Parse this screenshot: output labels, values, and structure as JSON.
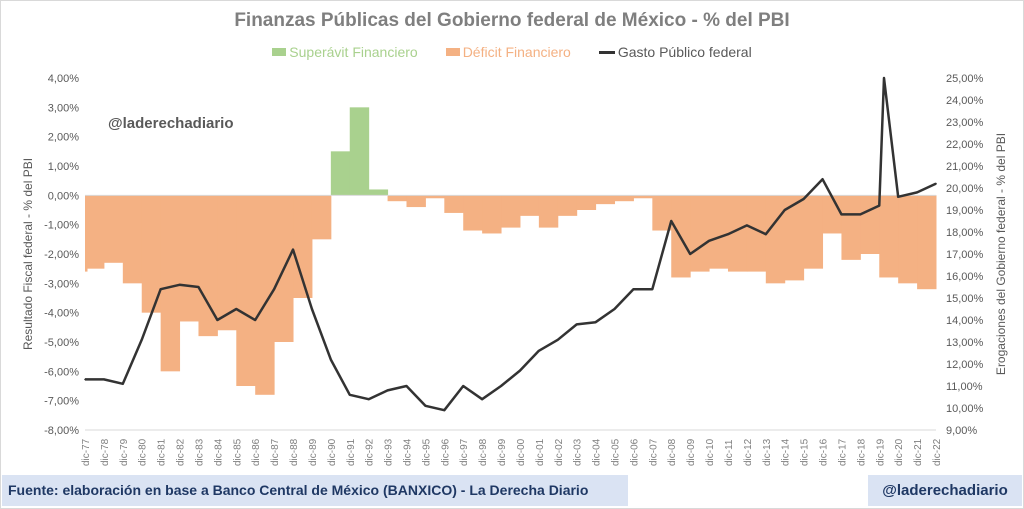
{
  "chart_data": {
    "type": "bar+line",
    "title": "Finanzas Públicas del Gobierno federal de México - % del PBI",
    "legend_position": "top",
    "y_left": {
      "label": "Resultado Fiscal federal - % del PBI",
      "range": [
        -8,
        4
      ],
      "ticks": [
        "4,00%",
        "3,00%",
        "2,00%",
        "1,00%",
        "0,00%",
        "-1,00%",
        "-2,00%",
        "-3,00%",
        "-4,00%",
        "-5,00%",
        "-6,00%",
        "-7,00%",
        "-8,00%"
      ]
    },
    "y_right": {
      "label": "Erogaciones del Gobierno federal - % del PBI",
      "range": [
        9,
        25
      ],
      "ticks": [
        "25,00%",
        "24,00%",
        "23,00%",
        "22,00%",
        "21,00%",
        "20,00%",
        "19,00%",
        "18,00%",
        "17,00%",
        "16,00%",
        "15,00%",
        "14,00%",
        "13,00%",
        "12,00%",
        "11,00%",
        "10,00%",
        "9,00%"
      ]
    },
    "x_ticks": [
      "dic-77",
      "dic-78",
      "dic-79",
      "dic-80",
      "dic-81",
      "dic-82",
      "dic-83",
      "dic-84",
      "dic-85",
      "dic-86",
      "dic-87",
      "dic-88",
      "dic-89",
      "dic-90",
      "dic-91",
      "dic-92",
      "dic-93",
      "dic-94",
      "dic-95",
      "dic-96",
      "dic-97",
      "dic-98",
      "dic-99",
      "dic-00",
      "dic-01",
      "dic-02",
      "dic-03",
      "dic-04",
      "dic-05",
      "dic-06",
      "dic-07",
      "dic-08",
      "dic-09",
      "dic-10",
      "dic-11",
      "dic-12",
      "dic-13",
      "dic-14",
      "dic-15",
      "dic-16",
      "dic-17",
      "dic-18",
      "dic-19",
      "dic-20",
      "dic-21",
      "dic-22"
    ],
    "series": [
      {
        "name": "Superávit Financiero",
        "kind": "bar-positive",
        "color": "#a9d18e"
      },
      {
        "name": "Déficit Financiero",
        "kind": "bar-negative",
        "color": "#f4b183"
      },
      {
        "name": "Gasto Público federal",
        "kind": "line",
        "axis": "right",
        "color": "#333333"
      }
    ],
    "balance": [
      -2.6,
      -2.5,
      -2.3,
      -3.0,
      -4.0,
      -6.0,
      -4.3,
      -4.8,
      -4.6,
      -6.5,
      -6.8,
      -5.0,
      -3.5,
      -1.5,
      1.5,
      3.0,
      0.2,
      -0.2,
      -0.4,
      -0.1,
      -0.6,
      -1.2,
      -1.3,
      -1.1,
      -0.7,
      -1.1,
      -0.7,
      -0.5,
      -0.3,
      -0.2,
      -0.1,
      -1.2,
      -2.8,
      -2.6,
      -2.5,
      -2.6,
      -2.6,
      -3.0,
      -2.9,
      -2.5,
      -1.3,
      -2.2,
      -2.0,
      -2.8,
      -3.0,
      -3.2
    ],
    "spending": [
      11.3,
      11.3,
      11.1,
      13.1,
      15.4,
      15.6,
      15.5,
      14.0,
      14.5,
      14.0,
      15.4,
      17.2,
      14.5,
      12.2,
      10.6,
      10.4,
      10.8,
      11.0,
      10.1,
      9.9,
      11.0,
      10.4,
      11.0,
      11.7,
      12.6,
      13.1,
      13.8,
      13.9,
      14.5,
      15.4,
      15.4,
      18.5,
      17.0,
      17.6,
      17.9,
      18.3,
      17.9,
      19.0,
      19.5,
      20.4,
      18.8,
      18.8,
      19.2,
      19.6,
      19.8,
      20.2
    ],
    "spending_peak": {
      "date": "mar-20",
      "value": 25.0
    }
  },
  "watermark": "@laderechadiario",
  "footer": {
    "source": "Fuente: elaboración en base a Banco Central de México (BANXICO) - La Derecha Diario",
    "handle": "@laderechadiario"
  }
}
